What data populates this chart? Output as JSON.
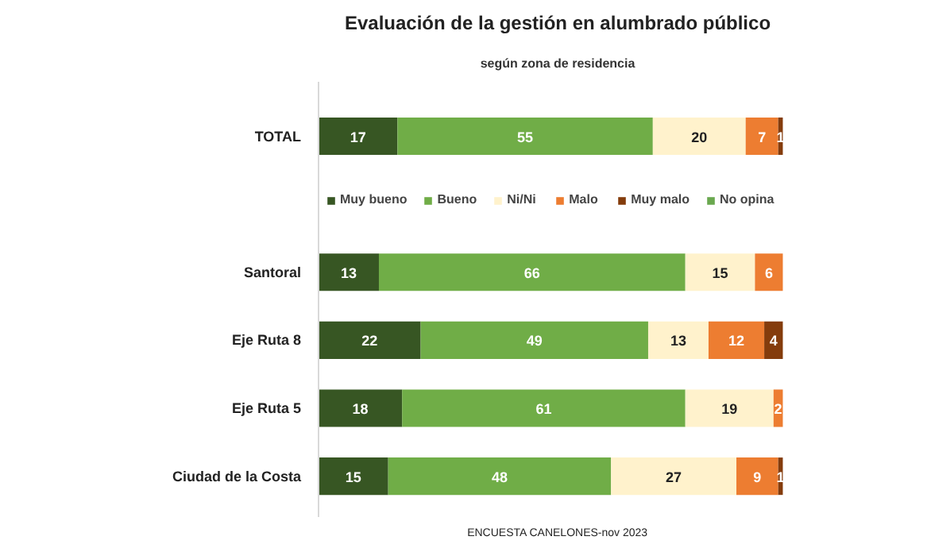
{
  "chart_data": {
    "type": "bar",
    "orientation": "horizontal",
    "stacked": true,
    "title": "Evaluación de la gestión en alumbrado público",
    "subtitle": "según zona de residencia",
    "categories": [
      "TOTAL",
      "Santoral",
      "Eje Ruta 8",
      "Eje Ruta 5",
      "Ciudad de la Costa"
    ],
    "series": [
      {
        "name": "Muy bueno",
        "color": "#375623",
        "values": [
          17,
          13,
          22,
          18,
          15
        ]
      },
      {
        "name": "Bueno",
        "color": "#70ad47",
        "values": [
          55,
          66,
          49,
          61,
          48
        ]
      },
      {
        "name": "Ni/Ni",
        "color": "#fff2cc",
        "values": [
          20,
          15,
          13,
          19,
          27
        ]
      },
      {
        "name": "Malo",
        "color": "#ed7d31",
        "values": [
          7,
          6,
          12,
          2,
          9
        ]
      },
      {
        "name": "Muy malo",
        "color": "#843c0c",
        "values": [
          1,
          null,
          4,
          null,
          1
        ]
      },
      {
        "name": "No opina",
        "color": "#6aa84f",
        "values": [
          null,
          null,
          null,
          null,
          null
        ]
      }
    ],
    "data_labels": true,
    "legend": "top",
    "grid": false,
    "annotations": [
      "ENCUESTA CANELONES-nov 2023"
    ]
  }
}
